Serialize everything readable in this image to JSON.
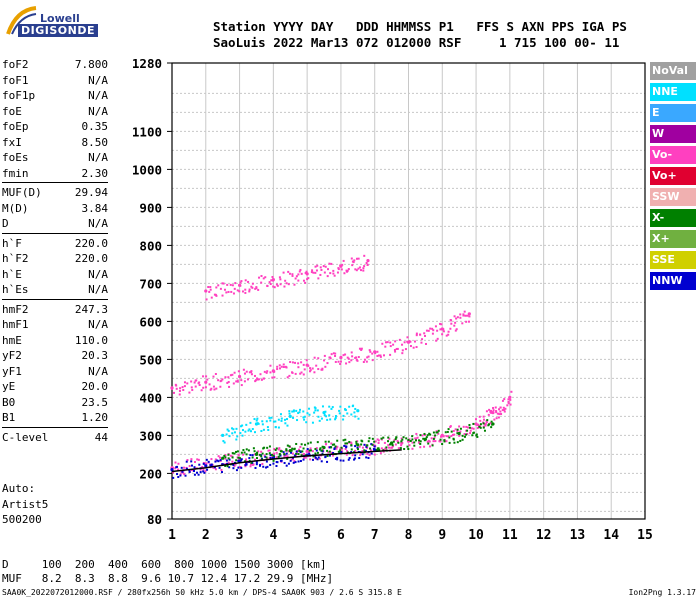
{
  "logo": {
    "line1": "Lowell",
    "line2": "DIGISONDE"
  },
  "header": {
    "line1": "Station YYYY DAY   DDD HHMMSS P1   FFS S AXN PPS IGA PS",
    "line2": "SaoLuis 2022 Mar13 072 012000 RSF     1 715 100 00- 11"
  },
  "params": {
    "group1": [
      {
        "label": "foF2",
        "value": "7.800"
      },
      {
        "label": "foF1",
        "value": "N/A"
      },
      {
        "label": "foF1p",
        "value": "N/A"
      },
      {
        "label": "foE",
        "value": "N/A"
      },
      {
        "label": "foEp",
        "value": "0.35"
      },
      {
        "label": "fxI",
        "value": "8.50"
      },
      {
        "label": "foEs",
        "value": "N/A"
      },
      {
        "label": "fmin",
        "value": "2.30"
      }
    ],
    "group2": [
      {
        "label": "MUF(D)",
        "value": "29.94"
      },
      {
        "label": "M(D)",
        "value": "3.84"
      },
      {
        "label": "D",
        "value": "N/A"
      }
    ],
    "group3": [
      {
        "label": "h`F",
        "value": "220.0"
      },
      {
        "label": "h`F2",
        "value": "220.0"
      },
      {
        "label": "h`E",
        "value": "N/A"
      },
      {
        "label": "h`Es",
        "value": "N/A"
      }
    ],
    "group4": [
      {
        "label": "hmF2",
        "value": "247.3"
      },
      {
        "label": "hmF1",
        "value": "N/A"
      },
      {
        "label": "hmE",
        "value": "110.0"
      },
      {
        "label": "yF2",
        "value": "20.3"
      },
      {
        "label": "yF1",
        "value": "N/A"
      },
      {
        "label": "yE",
        "value": "20.0"
      },
      {
        "label": "B0",
        "value": "23.5"
      },
      {
        "label": "B1",
        "value": "1.20"
      }
    ],
    "group5": [
      {
        "label": "C-level",
        "value": "44"
      }
    ]
  },
  "artist": {
    "line1": "Auto:",
    "line2": "Artist5",
    "line3": "500200"
  },
  "legend": [
    {
      "label": "NoVal",
      "color": "#a0a0a0"
    },
    {
      "label": "NNE",
      "color": "#00e0ff"
    },
    {
      "label": "E",
      "color": "#3aa8ff"
    },
    {
      "label": "W",
      "color": "#a000a0"
    },
    {
      "label": "Vo-",
      "color": "#ff40c0"
    },
    {
      "label": "Vo+",
      "color": "#e00030"
    },
    {
      "label": "SSW",
      "color": "#f0b0b0"
    },
    {
      "label": "X-",
      "color": "#008000"
    },
    {
      "label": "X+",
      "color": "#70b040"
    },
    {
      "label": "SSE",
      "color": "#d0d000"
    },
    {
      "label": "NNW",
      "color": "#0000d0"
    }
  ],
  "muf_table": {
    "line1": "D     100  200  400  600  800 1000 1500 3000 [km]",
    "line2": "MUF   8.2  8.3  8.8  9.6 10.7 12.4 17.2 29.9 [MHz]"
  },
  "footer": {
    "left": "SAA0K_2022072012000.RSF / 280fx256h 50 kHz 5.0 km / DPS-4 SAA0K 903 / 2.6 S 315.8 E",
    "right": "Ion2Png 1.3.17"
  },
  "chart_data": {
    "type": "scatter",
    "title": "",
    "xlabel": "",
    "ylabel": "",
    "xlim": [
      1,
      15
    ],
    "ylim": [
      80,
      1280
    ],
    "x_ticks": [
      1,
      2,
      3,
      4,
      5,
      6,
      7,
      8,
      9,
      10,
      11,
      12,
      13,
      14,
      15
    ],
    "y_ticks": [
      80,
      200,
      300,
      400,
      500,
      600,
      700,
      800,
      900,
      1000,
      1100,
      1280
    ],
    "grid": true,
    "series": [
      {
        "name": "Vo-",
        "color": "#ff40c0",
        "traces": [
          {
            "x": [
              1.0,
              2.0,
              3.0,
              4.0,
              5.0,
              6.0,
              7.0,
              7.8
            ],
            "y": [
              215,
              225,
              238,
              248,
              258,
              265,
              272,
              280
            ]
          },
          {
            "x": [
              1.0,
              2.0,
              3.0,
              4.0,
              5.0,
              6.0,
              7.0,
              8.0,
              9.0,
              9.8
            ],
            "y": [
              425,
              440,
              455,
              470,
              485,
              505,
              520,
              545,
              580,
              620
            ]
          },
          {
            "x": [
              2.0,
              3.0,
              4.0,
              5.0,
              6.0,
              6.8
            ],
            "y": [
              680,
              695,
              710,
              725,
              745,
              760
            ]
          },
          {
            "x": [
              8.0,
              9.0,
              10.0,
              10.5,
              11.0
            ],
            "y": [
              285,
              300,
              330,
              360,
              400
            ]
          }
        ]
      },
      {
        "name": "NNE",
        "color": "#00e0ff",
        "traces": [
          {
            "x": [
              2.5,
              3.5,
              4.5,
              5.5,
              6.5
            ],
            "y": [
              300,
              330,
              350,
              360,
              365
            ]
          }
        ]
      },
      {
        "name": "NNW",
        "color": "#0000d0",
        "traces": [
          {
            "x": [
              1.0,
              2.0,
              3.0,
              4.0,
              5.0,
              6.0,
              7.0
            ],
            "y": [
              210,
              220,
              232,
              240,
              248,
              255,
              262
            ]
          }
        ]
      },
      {
        "name": "X-",
        "color": "#008000",
        "traces": [
          {
            "x": [
              2.5,
              3.5,
              4.5,
              5.5,
              6.5,
              7.5,
              8.5,
              9.5,
              10.5
            ],
            "y": [
              240,
              250,
              260,
              268,
              275,
              280,
              290,
              305,
              330
            ]
          }
        ]
      }
    ],
    "profile": {
      "x": [
        1.0,
        2.0,
        3.0,
        4.0,
        5.0,
        6.0,
        7.0,
        7.8
      ],
      "y": [
        205,
        215,
        228,
        238,
        246,
        252,
        258,
        262
      ]
    }
  }
}
